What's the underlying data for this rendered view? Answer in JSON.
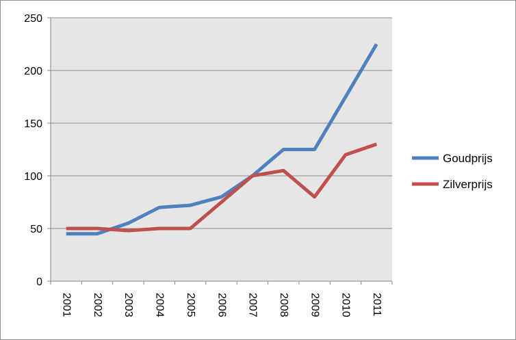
{
  "chart_data": {
    "type": "line",
    "title": "",
    "xlabel": "",
    "ylabel": "",
    "categories": [
      "2001",
      "2002",
      "2003",
      "2004",
      "2005",
      "2006",
      "2007",
      "2008",
      "2009",
      "2010",
      "2011"
    ],
    "ylim": [
      0,
      250
    ],
    "yticks": [
      0,
      50,
      100,
      150,
      200,
      250
    ],
    "grid": true,
    "legend_position": "right",
    "plot_background": "#e6e6e6",
    "series": [
      {
        "name": "Goudprijs",
        "color": "#4f81bd",
        "values": [
          45,
          45,
          55,
          70,
          72,
          80,
          100,
          125,
          125,
          175,
          225
        ]
      },
      {
        "name": "Zilverprijs",
        "color": "#c0504d",
        "values": [
          50,
          50,
          48,
          50,
          50,
          75,
          100,
          105,
          80,
          120,
          130
        ]
      }
    ]
  }
}
